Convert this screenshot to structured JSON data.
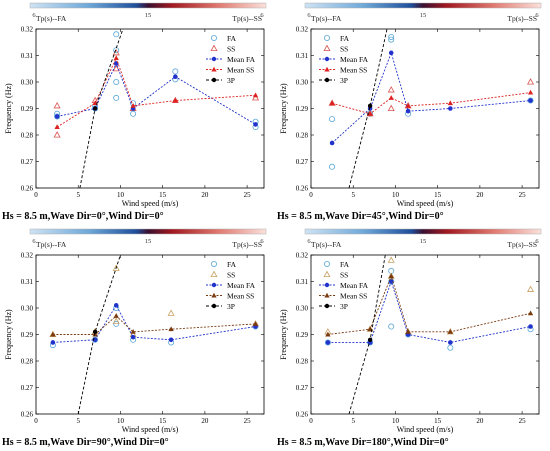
{
  "chart_data": [
    {
      "type": "scatter",
      "caption": "Hs = 8.5 m,Wave Dir=0°,Wind Dir=0°",
      "xlabel": "Wind speed (m/s)",
      "ylabel": "Frequency (Hz)",
      "xlim": [
        0,
        27
      ],
      "ylim": [
        0.26,
        0.32
      ],
      "xticks": [
        "0",
        "5",
        "10",
        "15",
        "20",
        "25"
      ],
      "yticks": [
        "0.26",
        "0.27",
        "0.28",
        "0.29",
        "0.30",
        "0.31",
        "0.32"
      ],
      "colorbar": {
        "left_label": "Tp(s)--FA",
        "right_label": "Tp(s)--SS",
        "ticks": [
          "6",
          "15",
          "6"
        ]
      },
      "legend": [
        "FA",
        "SS",
        "Mean FA",
        "Mean SS",
        "3P"
      ],
      "legend_position": "top-right",
      "series": [
        {
          "name": "FA",
          "kind": "scatter-circle",
          "color": "#59a6d8",
          "x": [
            2.5,
            2.5,
            7,
            7,
            9.5,
            9.5,
            9.5,
            9.5,
            11.5,
            11.5,
            16.5,
            16.5,
            26,
            26
          ],
          "y": [
            0.288,
            0.287,
            0.291,
            0.29,
            0.318,
            0.312,
            0.3,
            0.294,
            0.292,
            0.288,
            0.304,
            0.301,
            0.285,
            0.283
          ]
        },
        {
          "name": "SS",
          "kind": "scatter-triangle",
          "color": "#d9534f",
          "x": [
            2.5,
            2.5,
            7,
            9.5,
            9.5,
            11.5,
            16.5,
            26
          ],
          "y": [
            0.291,
            0.28,
            0.293,
            0.311,
            0.305,
            0.29,
            0.293,
            0.294
          ]
        },
        {
          "name": "Mean FA",
          "kind": "line-circle",
          "color": "#2233cc",
          "x": [
            2.5,
            7,
            9.5,
            11.5,
            16.5,
            26
          ],
          "y": [
            0.287,
            0.29,
            0.307,
            0.29,
            0.302,
            0.284
          ]
        },
        {
          "name": "Mean SS",
          "kind": "line-triangle",
          "color": "#dd2222",
          "x": [
            2.5,
            7,
            9.5,
            11.5,
            16.5,
            26
          ],
          "y": [
            0.283,
            0.292,
            0.309,
            0.291,
            0.293,
            0.295
          ]
        },
        {
          "name": "3P",
          "kind": "line-dashed",
          "color": "#000000",
          "x": [
            5.2,
            7,
            10.3
          ],
          "y": [
            0.26,
            0.29,
            0.32
          ]
        }
      ]
    },
    {
      "type": "scatter",
      "caption": "Hs = 8.5 m,Wave Dir=45°,Wind Dir=0°",
      "xlabel": "Wind speed (m/s)",
      "ylabel": "Frequency (Hz)",
      "xlim": [
        0,
        27
      ],
      "ylim": [
        0.26,
        0.32
      ],
      "xticks": [
        "0",
        "5",
        "10",
        "15",
        "20",
        "25"
      ],
      "yticks": [
        "0.26",
        "0.27",
        "0.28",
        "0.29",
        "0.30",
        "0.31",
        "0.32"
      ],
      "colorbar": {
        "left_label": "Tp(s)--FA",
        "right_label": "Tp(s)--SS",
        "ticks": [
          "6",
          "15",
          "6"
        ]
      },
      "legend": [
        "FA",
        "SS",
        "Mean FA",
        "Mean SS",
        "3P"
      ],
      "legend_position": "top-left",
      "series": [
        {
          "name": "FA",
          "kind": "scatter-circle",
          "color": "#59a6d8",
          "x": [
            2.5,
            2.5,
            7,
            9.5,
            9.5,
            11.5,
            26
          ],
          "y": [
            0.286,
            0.268,
            0.288,
            0.317,
            0.316,
            0.288,
            0.293
          ]
        },
        {
          "name": "SS",
          "kind": "scatter-triangle",
          "color": "#d9534f",
          "x": [
            2.5,
            7,
            9.5,
            9.5,
            11.5,
            26
          ],
          "y": [
            0.292,
            0.288,
            0.297,
            0.29,
            0.291,
            0.3
          ]
        },
        {
          "name": "Mean FA",
          "kind": "line-circle",
          "color": "#2233cc",
          "x": [
            2.5,
            7,
            9.5,
            11.5,
            16.5,
            26
          ],
          "y": [
            0.277,
            0.29,
            0.311,
            0.289,
            0.29,
            0.293
          ]
        },
        {
          "name": "Mean SS",
          "kind": "line-triangle",
          "color": "#dd2222",
          "x": [
            2.5,
            7,
            9.5,
            11.5,
            16.5,
            26
          ],
          "y": [
            0.292,
            0.288,
            0.294,
            0.291,
            0.292,
            0.296
          ]
        },
        {
          "name": "3P",
          "kind": "line-dashed",
          "color": "#000000",
          "x": [
            4.5,
            7,
            9
          ],
          "y": [
            0.26,
            0.291,
            0.32
          ]
        }
      ]
    },
    {
      "type": "scatter",
      "caption": "Hs = 8.5 m,Wave Dir=90°,Wind Dir=0°",
      "xlabel": "Wind speed (m/s)",
      "ylabel": "Frequency (Hz)",
      "xlim": [
        0,
        27
      ],
      "ylim": [
        0.26,
        0.32
      ],
      "xticks": [
        "0",
        "5",
        "10",
        "15",
        "20",
        "25"
      ],
      "yticks": [
        "0.26",
        "0.27",
        "0.28",
        "0.29",
        "0.30",
        "0.31",
        "0.32"
      ],
      "colorbar": {
        "left_label": "Tp(s)--FA",
        "right_label": "Tp(s)--SS",
        "ticks": [
          "6",
          "15",
          "6"
        ]
      },
      "legend": [
        "FA",
        "SS",
        "Mean FA",
        "Mean SS",
        "3P"
      ],
      "legend_position": "top-right",
      "series": [
        {
          "name": "FA",
          "kind": "scatter-circle",
          "color": "#59a6d8",
          "x": [
            2,
            7,
            9.5,
            9.5,
            11.5,
            16,
            26
          ],
          "y": [
            0.286,
            0.288,
            0.3,
            0.294,
            0.288,
            0.287,
            0.293
          ]
        },
        {
          "name": "SS",
          "kind": "scatter-triangle",
          "color": "#c8a060",
          "x": [
            2,
            7,
            9.5,
            9.5,
            11.5,
            16,
            26
          ],
          "y": [
            0.29,
            0.291,
            0.315,
            0.295,
            0.29,
            0.298,
            0.294
          ]
        },
        {
          "name": "Mean FA",
          "kind": "line-circle",
          "color": "#2233cc",
          "x": [
            2,
            7,
            9.5,
            11.5,
            16,
            26
          ],
          "y": [
            0.287,
            0.288,
            0.301,
            0.289,
            0.288,
            0.293
          ]
        },
        {
          "name": "Mean SS",
          "kind": "line-triangle",
          "color": "#7a3a10",
          "x": [
            2,
            7,
            9.5,
            11.5,
            16,
            26
          ],
          "y": [
            0.29,
            0.29,
            0.297,
            0.291,
            0.292,
            0.294
          ]
        },
        {
          "name": "3P",
          "kind": "line-dashed",
          "color": "#000000",
          "x": [
            5,
            7,
            10
          ],
          "y": [
            0.26,
            0.291,
            0.32
          ]
        }
      ]
    },
    {
      "type": "scatter",
      "caption": "Hs = 8.5 m,Wave Dir=180°,Wind Dir=0°",
      "xlabel": "Wind speed (m/s)",
      "ylabel": "Frequency (Hz)",
      "xlim": [
        0,
        27
      ],
      "ylim": [
        0.26,
        0.32
      ],
      "xticks": [
        "0",
        "5",
        "10",
        "15",
        "20",
        "25"
      ],
      "yticks": [
        "0.26",
        "0.27",
        "0.28",
        "0.29",
        "0.30",
        "0.31",
        "0.32"
      ],
      "colorbar": {
        "left_label": "Tp(s)--FA",
        "right_label": "Tp(s)--SS",
        "ticks": [
          "6",
          "15",
          "6"
        ]
      },
      "legend": [
        "FA",
        "SS",
        "Mean FA",
        "Mean SS",
        "3P"
      ],
      "legend_position": "top-left",
      "series": [
        {
          "name": "FA",
          "kind": "scatter-circle",
          "color": "#59a6d8",
          "x": [
            2,
            7,
            9.5,
            9.5,
            9.5,
            11.5,
            16.5,
            26
          ],
          "y": [
            0.287,
            0.287,
            0.314,
            0.31,
            0.293,
            0.29,
            0.285,
            0.292
          ]
        },
        {
          "name": "SS",
          "kind": "scatter-triangle",
          "color": "#c8a060",
          "x": [
            2,
            7,
            9.5,
            9.5,
            11.5,
            16.5,
            26
          ],
          "y": [
            0.291,
            0.292,
            0.318,
            0.312,
            0.291,
            0.291,
            0.307
          ]
        },
        {
          "name": "Mean FA",
          "kind": "line-circle",
          "color": "#2233cc",
          "x": [
            2,
            7,
            9.5,
            11.5,
            16.5,
            26
          ],
          "y": [
            0.287,
            0.287,
            0.31,
            0.29,
            0.287,
            0.293
          ]
        },
        {
          "name": "Mean SS",
          "kind": "line-triangle",
          "color": "#7a3a10",
          "x": [
            2,
            7,
            9.5,
            11.5,
            16.5,
            26
          ],
          "y": [
            0.29,
            0.292,
            0.312,
            0.291,
            0.291,
            0.298
          ]
        },
        {
          "name": "3P",
          "kind": "line-dashed",
          "color": "#000000",
          "x": [
            4.5,
            7,
            8.8
          ],
          "y": [
            0.26,
            0.288,
            0.32
          ]
        }
      ]
    }
  ]
}
